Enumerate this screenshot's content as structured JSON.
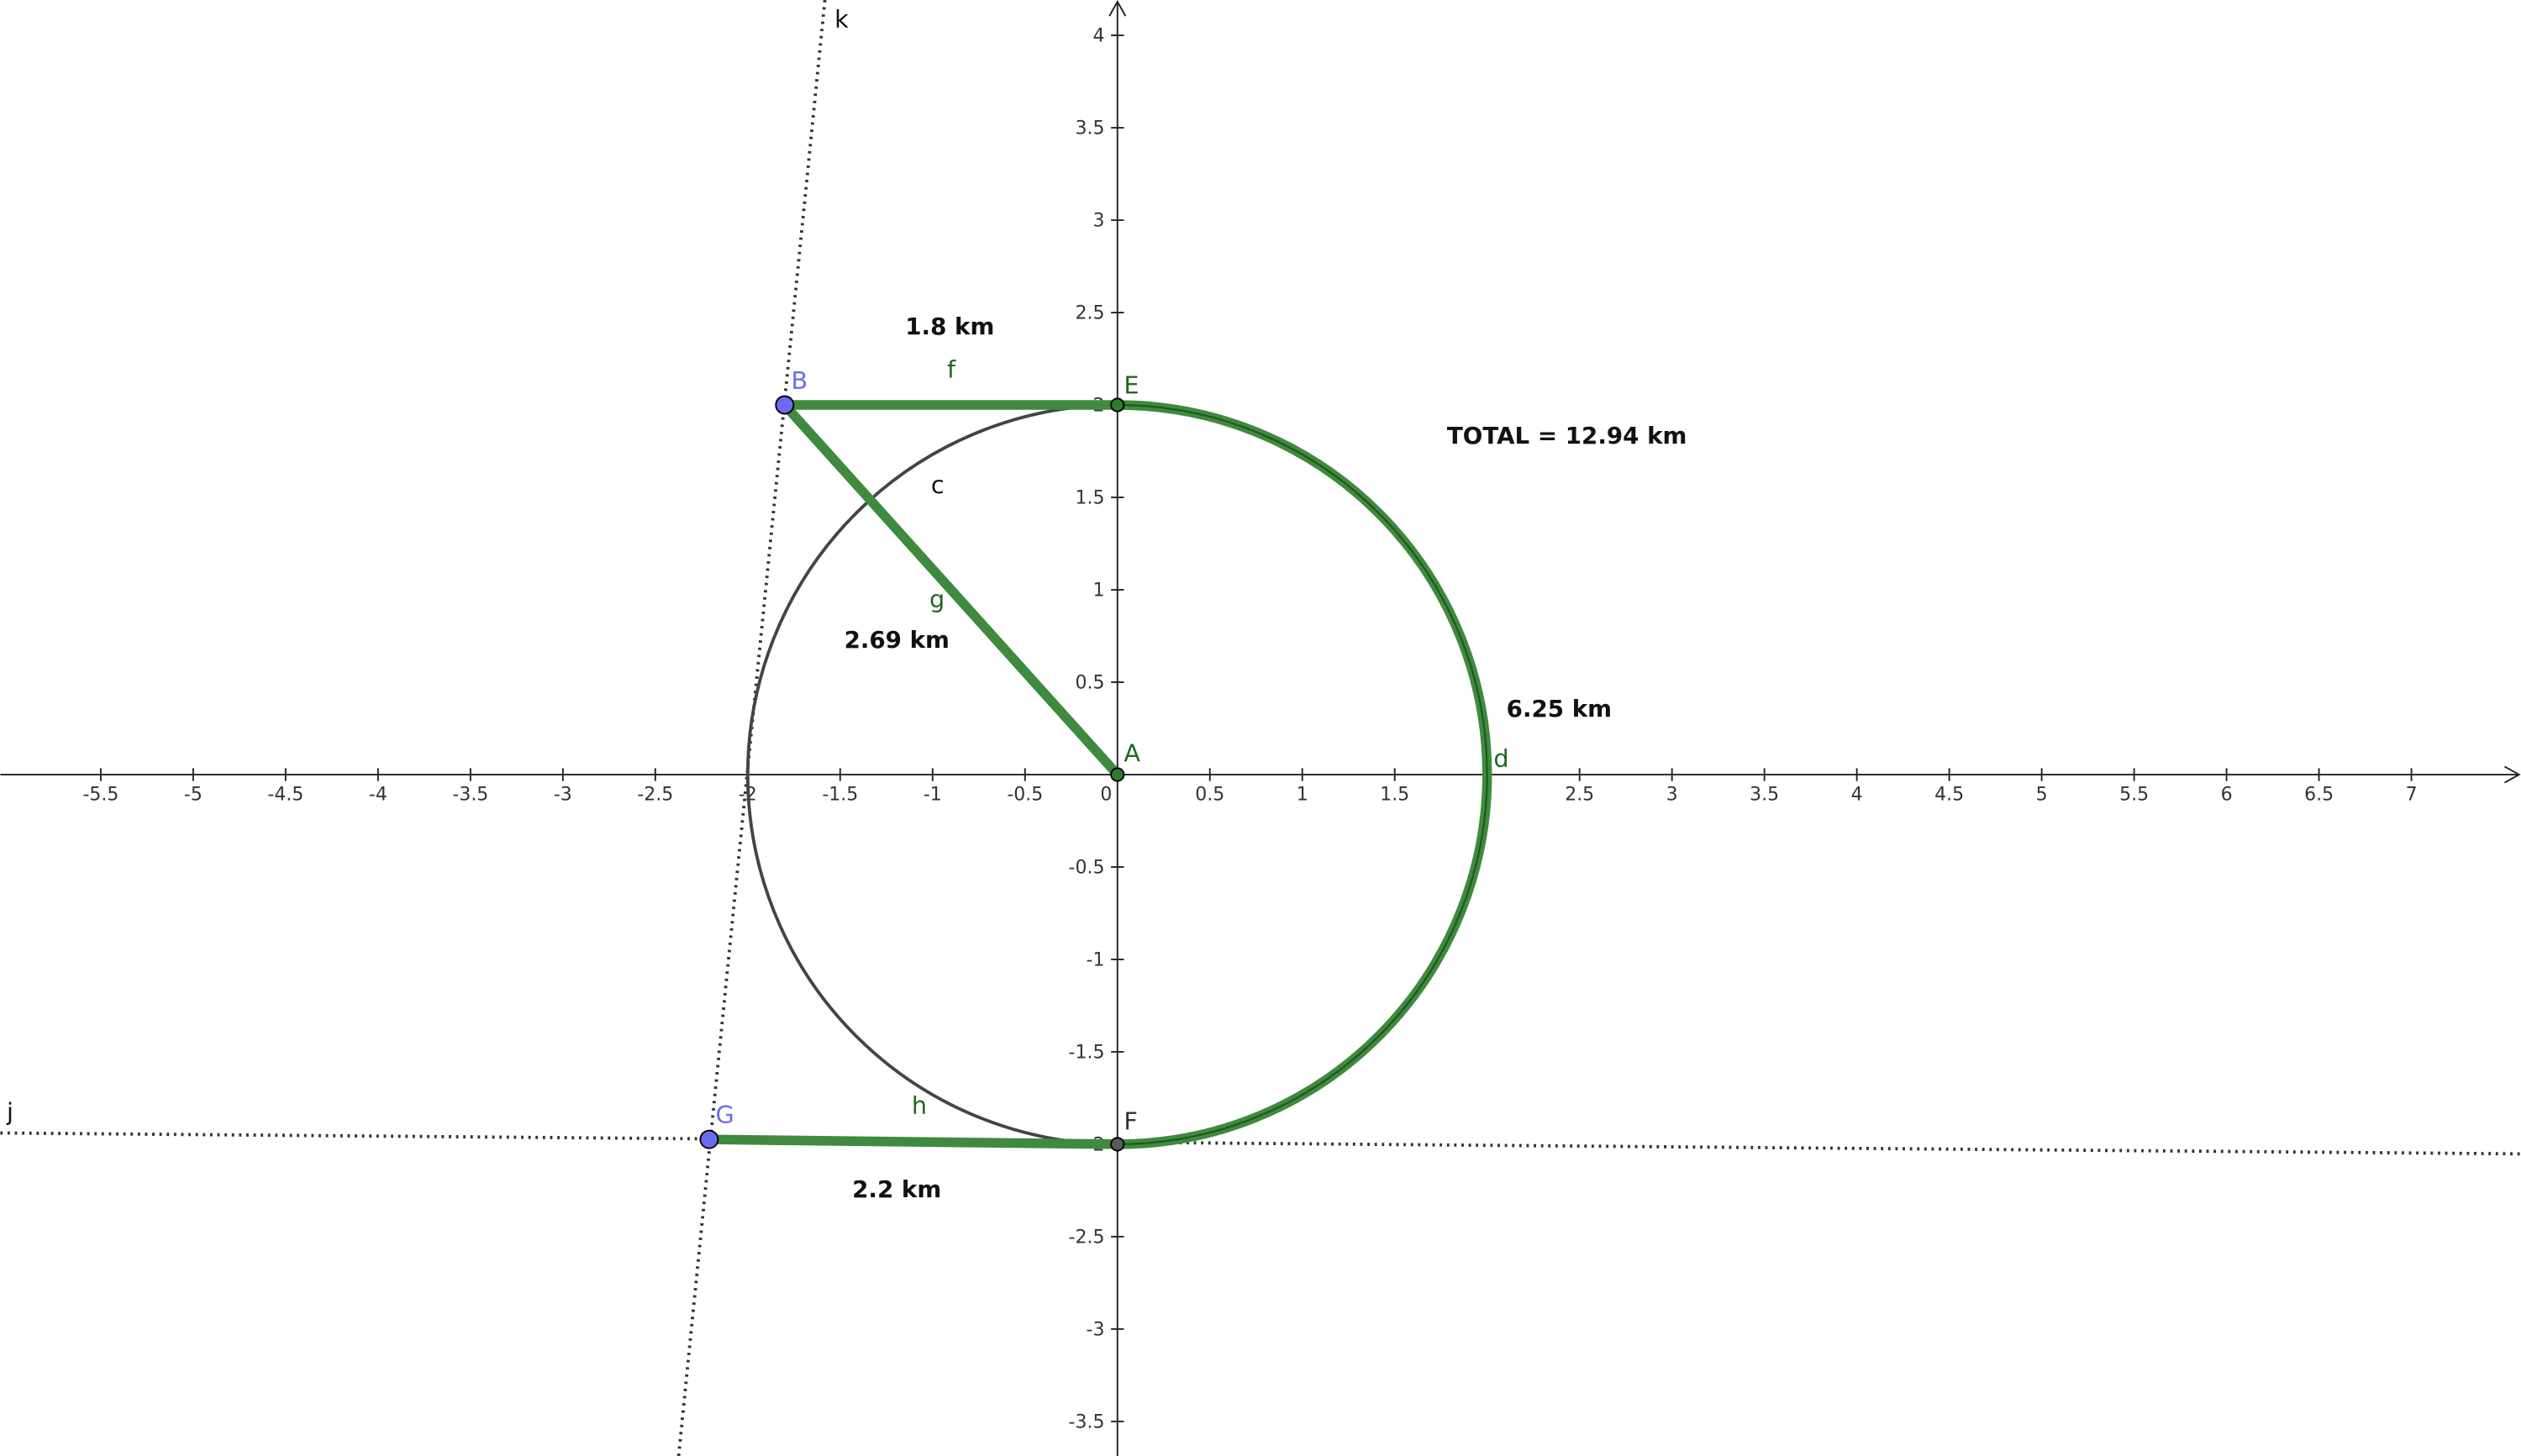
{
  "axes": {
    "xticks": [
      -5.5,
      -5,
      -4.5,
      -4,
      -3.5,
      -3,
      -2.5,
      -2,
      -1.5,
      -1,
      -0.5,
      0,
      0.5,
      1,
      1.5,
      2,
      2.5,
      3,
      3.5,
      4,
      4.5,
      5,
      5.5,
      6,
      6.5,
      7
    ],
    "yticks": [
      4,
      3.5,
      3,
      2.5,
      2,
      1.5,
      1,
      0.5,
      -0.5,
      -1,
      -1.5,
      -2,
      -2.5,
      -3,
      -3.5
    ]
  },
  "lines": {
    "k": "k",
    "j": "j"
  },
  "points": {
    "A": "A",
    "B": "B",
    "E": "E",
    "F": "F",
    "G": "G"
  },
  "objects": {
    "c": "c",
    "d": "d",
    "f": "f",
    "g": "g",
    "h": "h"
  },
  "measurements": {
    "f": "1.8 km",
    "g": "2.69 km",
    "d": "6.25 km",
    "h": "2.2 km"
  },
  "total": "TOTAL = 12.94 km"
}
